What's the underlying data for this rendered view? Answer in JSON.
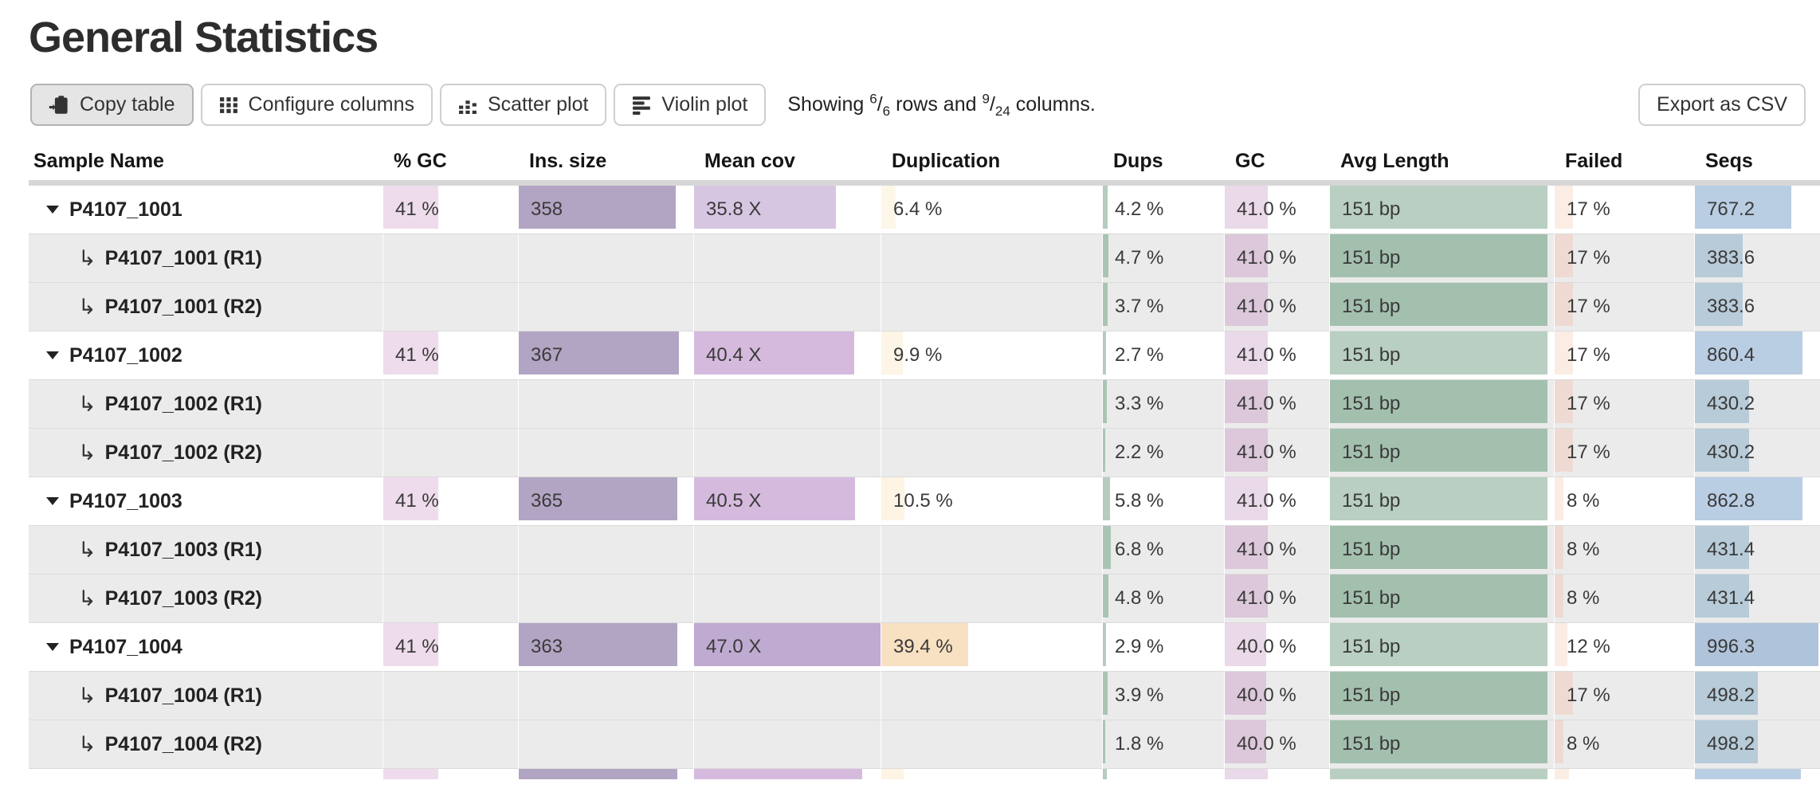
{
  "page": {
    "title": "General Statistics"
  },
  "toolbar": {
    "buttons": {
      "copy_table": "Copy table",
      "configure_columns": "Configure columns",
      "scatter_plot": "Scatter plot",
      "violin_plot": "Violin plot",
      "export_csv": "Export as CSV"
    },
    "summary": {
      "word_showing": "Showing",
      "rows_shown": "6",
      "rows_total": "6",
      "word_rows_and": "rows and",
      "cols_shown": "9",
      "cols_total": "24",
      "word_columns": "columns."
    }
  },
  "colors": {
    "pct_gc_bar": "#eedcec",
    "ins_size_bar": "#b2a5c3",
    "avg_length_main": "#b8cfc1",
    "avg_length_sub": "#a3c0ae",
    "seqs_main": "#b9cde3",
    "header_rule": "#d7d7d7",
    "subrow_bg": "#ebebeb"
  },
  "table": {
    "headers": [
      {
        "key": "sample_name",
        "label": "Sample Name"
      },
      {
        "key": "pct_gc",
        "label": "% GC"
      },
      {
        "key": "ins_size",
        "label": "Ins. size"
      },
      {
        "key": "mean_cov",
        "label": "Mean cov"
      },
      {
        "key": "duplication",
        "label": "Duplication"
      },
      {
        "key": "dups",
        "label": "Dups"
      },
      {
        "key": "gc",
        "label": "GC"
      },
      {
        "key": "avg_length",
        "label": "Avg Length"
      },
      {
        "key": "failed",
        "label": "Failed"
      },
      {
        "key": "seqs",
        "label": "Seqs"
      }
    ],
    "rows": [
      {
        "label": "P4107_1001",
        "type": "main",
        "cells": [
          {
            "text": "41 %",
            "frac": 0.41,
            "color": "#eedcec"
          },
          {
            "text": "358",
            "frac": 0.9,
            "color": "#b2a5c3"
          },
          {
            "text": "35.8 X",
            "frac": 0.76,
            "color": "#d7c6e2"
          },
          {
            "text": "6.4 %",
            "frac": 0.064,
            "color": "#fdf7e9"
          },
          {
            "text": "4.2 %",
            "frac": 0.042,
            "color": "#b5ccbe"
          },
          {
            "text": "41.0 %",
            "frac": 0.41,
            "color": "#ead9e9"
          },
          {
            "text": "151 bp",
            "frac": 0.97,
            "color": "#b8cfc1"
          },
          {
            "text": "17 %",
            "frac": 0.13,
            "color": "#fbece4"
          },
          {
            "text": "767.2",
            "frac": 0.77,
            "color": "#b9cde3"
          }
        ]
      },
      {
        "label": "P4107_1001 (R1)",
        "type": "sub",
        "cells": [
          {},
          {},
          {},
          {},
          {
            "text": "4.7 %",
            "frac": 0.047,
            "color": "#a9c4b3"
          },
          {
            "text": "41.0 %",
            "frac": 0.41,
            "color": "#dcc8da"
          },
          {
            "text": "151 bp",
            "frac": 0.97,
            "color": "#a3c0ae"
          },
          {
            "text": "17 %",
            "frac": 0.13,
            "color": "#eedad2"
          },
          {
            "text": "383.6",
            "frac": 0.38,
            "color": "#b7cbd8"
          }
        ]
      },
      {
        "label": "P4107_1001 (R2)",
        "type": "sub",
        "cells": [
          {},
          {},
          {},
          {},
          {
            "text": "3.7 %",
            "frac": 0.037,
            "color": "#a9c4b3"
          },
          {
            "text": "41.0 %",
            "frac": 0.41,
            "color": "#dcc8da"
          },
          {
            "text": "151 bp",
            "frac": 0.97,
            "color": "#a3c0ae"
          },
          {
            "text": "17 %",
            "frac": 0.13,
            "color": "#eedad2"
          },
          {
            "text": "383.6",
            "frac": 0.38,
            "color": "#b7cbd8"
          }
        ]
      },
      {
        "label": "P4107_1002",
        "type": "main",
        "cells": [
          {
            "text": "41 %",
            "frac": 0.41,
            "color": "#eedcec"
          },
          {
            "text": "367",
            "frac": 0.92,
            "color": "#b2a5c3"
          },
          {
            "text": "40.4 X",
            "frac": 0.86,
            "color": "#d5bade"
          },
          {
            "text": "9.9 %",
            "frac": 0.099,
            "color": "#fdf5e5"
          },
          {
            "text": "2.7 %",
            "frac": 0.027,
            "color": "#b5ccbe"
          },
          {
            "text": "41.0 %",
            "frac": 0.41,
            "color": "#ead9e9"
          },
          {
            "text": "151 bp",
            "frac": 0.97,
            "color": "#b8cfc1"
          },
          {
            "text": "17 %",
            "frac": 0.13,
            "color": "#fbece4"
          },
          {
            "text": "860.4",
            "frac": 0.86,
            "color": "#b9cde3"
          }
        ]
      },
      {
        "label": "P4107_1002 (R1)",
        "type": "sub",
        "cells": [
          {},
          {},
          {},
          {},
          {
            "text": "3.3 %",
            "frac": 0.033,
            "color": "#a9c4b3"
          },
          {
            "text": "41.0 %",
            "frac": 0.41,
            "color": "#dcc8da"
          },
          {
            "text": "151 bp",
            "frac": 0.97,
            "color": "#a3c0ae"
          },
          {
            "text": "17 %",
            "frac": 0.13,
            "color": "#eedad2"
          },
          {
            "text": "430.2",
            "frac": 0.43,
            "color": "#b7cbd8"
          }
        ]
      },
      {
        "label": "P4107_1002 (R2)",
        "type": "sub",
        "cells": [
          {},
          {},
          {},
          {},
          {
            "text": "2.2 %",
            "frac": 0.022,
            "color": "#a9c4b3"
          },
          {
            "text": "41.0 %",
            "frac": 0.41,
            "color": "#dcc8da"
          },
          {
            "text": "151 bp",
            "frac": 0.97,
            "color": "#a3c0ae"
          },
          {
            "text": "17 %",
            "frac": 0.13,
            "color": "#eedad2"
          },
          {
            "text": "430.2",
            "frac": 0.43,
            "color": "#b7cbd8"
          }
        ]
      },
      {
        "label": "P4107_1003",
        "type": "main",
        "cells": [
          {
            "text": "41 %",
            "frac": 0.41,
            "color": "#eedcec"
          },
          {
            "text": "365",
            "frac": 0.91,
            "color": "#b2a5c3"
          },
          {
            "text": "40.5 X",
            "frac": 0.862,
            "color": "#d5bade"
          },
          {
            "text": "10.5 %",
            "frac": 0.105,
            "color": "#fdf4e3"
          },
          {
            "text": "5.8 %",
            "frac": 0.058,
            "color": "#b5ccbe"
          },
          {
            "text": "41.0 %",
            "frac": 0.41,
            "color": "#ead9e9"
          },
          {
            "text": "151 bp",
            "frac": 0.97,
            "color": "#b8cfc1"
          },
          {
            "text": "8 %",
            "frac": 0.062,
            "color": "#fbece4"
          },
          {
            "text": "862.8",
            "frac": 0.86,
            "color": "#b9cde3"
          }
        ]
      },
      {
        "label": "P4107_1003 (R1)",
        "type": "sub",
        "cells": [
          {},
          {},
          {},
          {},
          {
            "text": "6.8 %",
            "frac": 0.068,
            "color": "#a9c4b3"
          },
          {
            "text": "41.0 %",
            "frac": 0.41,
            "color": "#dcc8da"
          },
          {
            "text": "151 bp",
            "frac": 0.97,
            "color": "#a3c0ae"
          },
          {
            "text": "8 %",
            "frac": 0.062,
            "color": "#eedad2"
          },
          {
            "text": "431.4",
            "frac": 0.43,
            "color": "#b7cbd8"
          }
        ]
      },
      {
        "label": "P4107_1003 (R2)",
        "type": "sub",
        "cells": [
          {},
          {},
          {},
          {},
          {
            "text": "4.8 %",
            "frac": 0.048,
            "color": "#a9c4b3"
          },
          {
            "text": "41.0 %",
            "frac": 0.41,
            "color": "#dcc8da"
          },
          {
            "text": "151 bp",
            "frac": 0.97,
            "color": "#a3c0ae"
          },
          {
            "text": "8 %",
            "frac": 0.062,
            "color": "#eedad2"
          },
          {
            "text": "431.4",
            "frac": 0.43,
            "color": "#b7cbd8"
          }
        ]
      },
      {
        "label": "P4107_1004",
        "type": "main",
        "cells": [
          {
            "text": "41 %",
            "frac": 0.41,
            "color": "#eedcec"
          },
          {
            "text": "363",
            "frac": 0.91,
            "color": "#b2a5c3"
          },
          {
            "text": "47.0 X",
            "frac": 1.0,
            "color": "#bfaad1"
          },
          {
            "text": "39.4 %",
            "frac": 0.394,
            "color": "#f8e0c2"
          },
          {
            "text": "2.9 %",
            "frac": 0.029,
            "color": "#b5ccbe"
          },
          {
            "text": "40.0 %",
            "frac": 0.4,
            "color": "#ead9e9"
          },
          {
            "text": "151 bp",
            "frac": 0.97,
            "color": "#b8cfc1"
          },
          {
            "text": "12 %",
            "frac": 0.092,
            "color": "#fbece4"
          },
          {
            "text": "996.3",
            "frac": 0.99,
            "color": "#afc3da"
          }
        ]
      },
      {
        "label": "P4107_1004 (R1)",
        "type": "sub",
        "cells": [
          {},
          {},
          {},
          {},
          {
            "text": "3.9 %",
            "frac": 0.039,
            "color": "#a9c4b3"
          },
          {
            "text": "40.0 %",
            "frac": 0.4,
            "color": "#dcc8da"
          },
          {
            "text": "151 bp",
            "frac": 0.97,
            "color": "#a3c0ae"
          },
          {
            "text": "17 %",
            "frac": 0.13,
            "color": "#eedad2"
          },
          {
            "text": "498.2",
            "frac": 0.5,
            "color": "#b7cbd8"
          }
        ]
      },
      {
        "label": "P4107_1004 (R2)",
        "type": "sub",
        "cells": [
          {},
          {},
          {},
          {},
          {
            "text": "1.8 %",
            "frac": 0.018,
            "color": "#a9c4b3"
          },
          {
            "text": "40.0 %",
            "frac": 0.4,
            "color": "#dcc8da"
          },
          {
            "text": "151 bp",
            "frac": 0.97,
            "color": "#a3c0ae"
          },
          {
            "text": "8 %",
            "frac": 0.062,
            "color": "#eedad2"
          },
          {
            "text": "498.2",
            "frac": 0.5,
            "color": "#b7cbd8"
          }
        ]
      },
      {
        "label": "",
        "type": "partial",
        "cells": [
          {
            "text": "",
            "frac": 0.41,
            "color": "#eedcec"
          },
          {
            "text": "",
            "frac": 0.91,
            "color": "#b2a5c3"
          },
          {
            "text": "",
            "frac": 0.9,
            "color": "#d5bade"
          },
          {
            "text": "",
            "frac": 0.1,
            "color": "#fdf4e3"
          },
          {
            "text": "",
            "frac": 0.035,
            "color": "#b5ccbe"
          },
          {
            "text": "",
            "frac": 0.41,
            "color": "#ead9e9"
          },
          {
            "text": "",
            "frac": 0.97,
            "color": "#b8cfc1"
          },
          {
            "text": "",
            "frac": 0.1,
            "color": "#fbece4"
          },
          {
            "text": "",
            "frac": 0.85,
            "color": "#b9cde3"
          }
        ]
      }
    ]
  }
}
